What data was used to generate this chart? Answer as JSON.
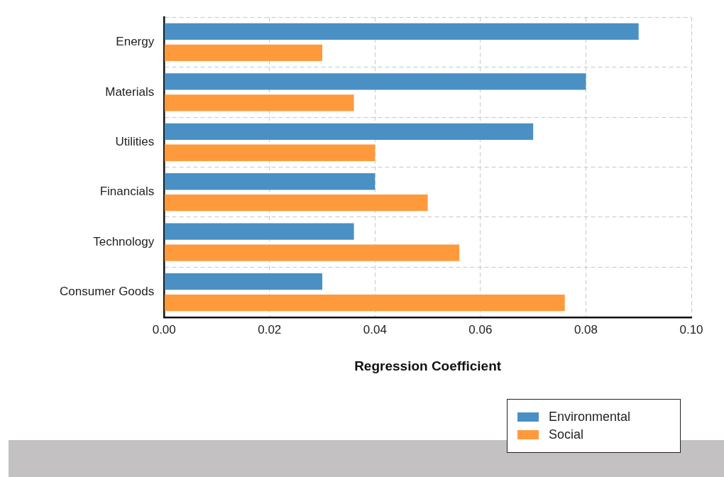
{
  "chart_data": {
    "type": "bar",
    "orientation": "horizontal",
    "xlabel": "Regression Coefficient",
    "categories": [
      "Energy",
      "Materials",
      "Utilities",
      "Financials",
      "Technology",
      "Consumer Goods"
    ],
    "series": [
      {
        "name": "Environmental",
        "color": "#4a90c4",
        "values": [
          0.09,
          0.08,
          0.07,
          0.04,
          0.036,
          0.03
        ]
      },
      {
        "name": "Social",
        "color": "#ff9a3c",
        "values": [
          0.03,
          0.036,
          0.04,
          0.05,
          0.056,
          0.076
        ]
      }
    ],
    "xlim": [
      0,
      0.1
    ],
    "xticks": [
      {
        "value": 0,
        "label": "0.00"
      },
      {
        "value": 0.02,
        "label": "0.02"
      },
      {
        "value": 0.04,
        "label": "0.04"
      },
      {
        "value": 0.06,
        "label": "0.06"
      },
      {
        "value": 0.08,
        "label": "0.08"
      },
      {
        "value": 0.1,
        "label": "0.10"
      }
    ],
    "grid": true,
    "legend": "bottom right"
  }
}
